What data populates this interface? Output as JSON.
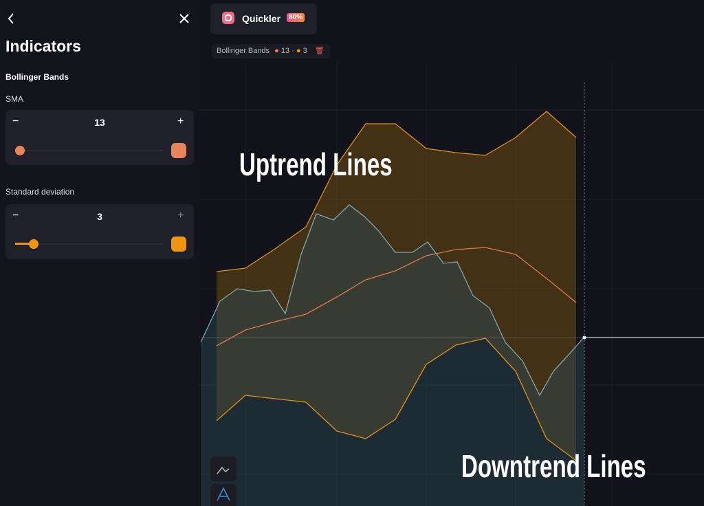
{
  "panel": {
    "title": "Indicators",
    "indicator": "Bollinger Bands",
    "sma": {
      "label": "SMA",
      "value": "13"
    },
    "deviation": {
      "label": "Standard deviation",
      "value": "3"
    }
  },
  "header": {
    "asset": "Quickler",
    "payout": "80%"
  },
  "legend": {
    "name": "Bollinger Bands",
    "sma": "13",
    "deviation": "3"
  },
  "annotations": {
    "up": "Uptrend Lines",
    "down": "Downtrend Lines"
  }
}
